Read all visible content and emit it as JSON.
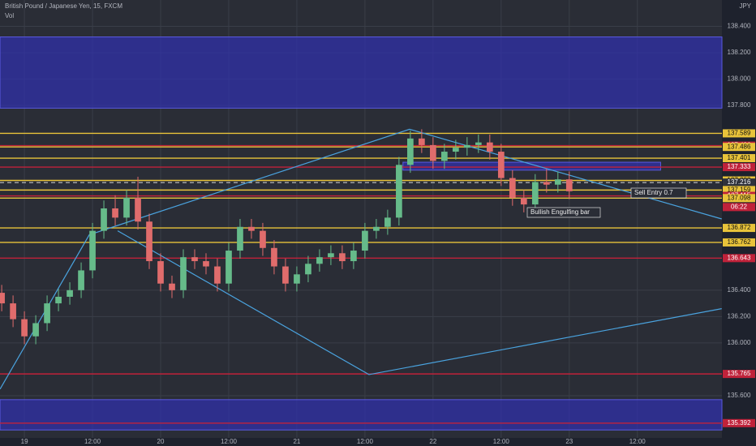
{
  "chart_data": {
    "type": "candlestick",
    "title": "British Pound / Japanese Yen, 15, FXCM",
    "subtitle": "Vol",
    "currency": "JPY",
    "xlim": [
      -4.3,
      122.9
    ],
    "ylim": [
      135.28,
      138.6
    ],
    "xticks": [
      {
        "value": 0,
        "label": "19"
      },
      {
        "value": 12,
        "label": "12:00"
      },
      {
        "value": 24,
        "label": "20"
      },
      {
        "value": 36,
        "label": "12:00"
      },
      {
        "value": 48,
        "label": "21"
      },
      {
        "value": 60,
        "label": "12:00"
      },
      {
        "value": 72,
        "label": "22"
      },
      {
        "value": 84,
        "label": "12:00"
      },
      {
        "value": 96,
        "label": "23"
      },
      {
        "value": 108,
        "label": "12:00"
      }
    ],
    "yticks": [
      {
        "value": 138.4,
        "label": "138.400"
      },
      {
        "value": 138.2,
        "label": "138.200"
      },
      {
        "value": 138.0,
        "label": "138.000"
      },
      {
        "value": 137.8,
        "label": "137.800"
      },
      {
        "value": 136.4,
        "label": "136.400"
      },
      {
        "value": 136.2,
        "label": "136.200"
      },
      {
        "value": 136.0,
        "label": "136.000"
      },
      {
        "value": 135.6,
        "label": "135.600"
      }
    ],
    "grid": true,
    "up_color": "#66bb8a",
    "down_color": "#e06c6c",
    "candles": {
      "x": [
        -4,
        -2,
        0,
        2,
        4,
        6,
        8,
        10,
        12,
        14,
        16,
        18,
        20,
        22,
        24,
        26,
        28,
        30,
        32,
        34,
        36,
        38,
        40,
        42,
        44,
        46,
        48,
        50,
        52,
        54,
        56,
        58,
        60,
        62,
        64,
        66,
        68,
        70,
        72,
        74,
        76,
        78,
        80,
        82,
        84,
        86,
        88,
        90,
        92,
        94,
        96
      ],
      "open": [
        136.38,
        136.3,
        136.18,
        136.05,
        136.15,
        136.3,
        136.35,
        136.4,
        136.55,
        136.85,
        137.02,
        136.95,
        137.1,
        136.92,
        136.62,
        136.45,
        136.4,
        136.65,
        136.62,
        136.58,
        136.45,
        136.7,
        136.88,
        136.85,
        136.72,
        136.58,
        136.45,
        136.52,
        136.6,
        136.65,
        136.68,
        136.62,
        136.7,
        136.85,
        136.88,
        136.95,
        137.35,
        137.55,
        137.5,
        137.38,
        137.45,
        137.48,
        137.5,
        137.52,
        137.45,
        137.25,
        137.1,
        137.05,
        137.22,
        137.2,
        137.24
      ],
      "high": [
        136.44,
        136.36,
        136.24,
        136.21,
        136.36,
        136.41,
        136.46,
        136.61,
        136.91,
        137.08,
        137.12,
        137.16,
        137.26,
        136.98,
        136.68,
        136.51,
        136.71,
        136.71,
        136.68,
        136.64,
        136.76,
        136.94,
        136.94,
        136.91,
        136.78,
        136.64,
        136.58,
        136.66,
        136.71,
        136.74,
        136.74,
        136.76,
        136.91,
        136.94,
        137.01,
        137.41,
        137.61,
        137.62,
        137.56,
        137.51,
        137.54,
        137.56,
        137.58,
        137.58,
        137.51,
        137.31,
        137.16,
        137.28,
        137.32,
        137.3,
        137.3
      ],
      "low": [
        136.24,
        136.12,
        135.99,
        135.99,
        136.09,
        136.24,
        136.29,
        136.34,
        136.49,
        136.79,
        136.89,
        136.89,
        136.86,
        136.56,
        136.39,
        136.34,
        136.34,
        136.56,
        136.52,
        136.39,
        136.39,
        136.64,
        136.79,
        136.66,
        136.52,
        136.39,
        136.39,
        136.46,
        136.54,
        136.59,
        136.56,
        136.56,
        136.64,
        136.79,
        136.82,
        136.89,
        137.29,
        137.44,
        137.32,
        137.32,
        137.39,
        137.42,
        137.44,
        137.39,
        137.19,
        137.04,
        136.99,
        136.99,
        137.14,
        137.14,
        137.09
      ],
      "close": [
        136.3,
        136.18,
        136.05,
        136.15,
        136.3,
        136.35,
        136.4,
        136.55,
        136.85,
        137.02,
        136.95,
        137.1,
        136.92,
        136.62,
        136.45,
        136.4,
        136.65,
        136.62,
        136.58,
        136.45,
        136.7,
        136.88,
        136.85,
        136.72,
        136.58,
        136.45,
        136.52,
        136.6,
        136.65,
        136.68,
        136.62,
        136.7,
        136.85,
        136.88,
        136.95,
        137.35,
        137.55,
        137.5,
        137.38,
        137.45,
        137.48,
        137.5,
        137.52,
        137.45,
        137.25,
        137.1,
        137.05,
        137.22,
        137.2,
        137.24,
        137.15
      ]
    },
    "zones": [
      {
        "top": 138.32,
        "bottom": 137.78,
        "from": null,
        "to": null
      },
      {
        "top": 137.37,
        "bottom": 137.31,
        "from": 66.7,
        "to": 112.1
      },
      {
        "top": 135.57,
        "bottom": 135.34,
        "from": null,
        "to": null
      }
    ],
    "zone_color": "#3030b0",
    "trendline_color": "#4aa3df",
    "trendlines": [
      {
        "points": [
          [
            -4.29,
            135.65
          ],
          [
            11.43,
            136.82
          ],
          [
            67.86,
            137.62
          ],
          [
            122.86,
            136.94
          ]
        ]
      },
      {
        "points": [
          [
            16.43,
            136.85
          ],
          [
            60.71,
            135.76
          ],
          [
            122.86,
            136.26
          ]
        ]
      }
    ],
    "levels": [
      {
        "value": 137.589,
        "label": "137.589",
        "color": "#e8c33a",
        "style": "solid"
      },
      {
        "value": 137.496,
        "label": "137.496",
        "color": "#c0223a",
        "style": "solid"
      },
      {
        "value": 137.486,
        "label": "137.486",
        "color": "#e8c33a",
        "style": "solid"
      },
      {
        "value": 137.401,
        "label": "137.401",
        "color": "#e8c33a",
        "style": "solid"
      },
      {
        "value": 137.333,
        "label": "137.333",
        "color": "#c0223a",
        "style": "solid"
      },
      {
        "value": 137.232,
        "label": "137.232",
        "color": "#e8c33a",
        "style": "solid"
      },
      {
        "value": 137.216,
        "label": "137.216",
        "color": "#d8d8d8",
        "style": "dashed"
      },
      {
        "value": 137.159,
        "label": "137.159",
        "color": "#e8c33a",
        "style": "solid"
      },
      {
        "value": 137.115,
        "label": "137.115",
        "color": "#c0223a",
        "style": "solid"
      },
      {
        "value": 137.03,
        "label": "06:22",
        "color": "#c0223a",
        "style": "none"
      },
      {
        "value": 137.098,
        "label": "137.098",
        "color": "#e8c33a",
        "style": "solid"
      },
      {
        "value": 136.872,
        "label": "136.872",
        "color": "#e8c33a",
        "style": "solid"
      },
      {
        "value": 136.762,
        "label": "136.762",
        "color": "#e8c33a",
        "style": "solid"
      },
      {
        "value": 136.643,
        "label": "136.643",
        "color": "#c0223a",
        "style": "solid"
      },
      {
        "value": 135.765,
        "label": "135.765",
        "color": "#c0223a",
        "style": "solid"
      },
      {
        "value": 135.392,
        "label": "135.392",
        "color": "#c0223a",
        "style": "solid"
      }
    ],
    "annotations": [
      "Sell Entry 0.7",
      "Bullish Engulfing bar"
    ]
  }
}
